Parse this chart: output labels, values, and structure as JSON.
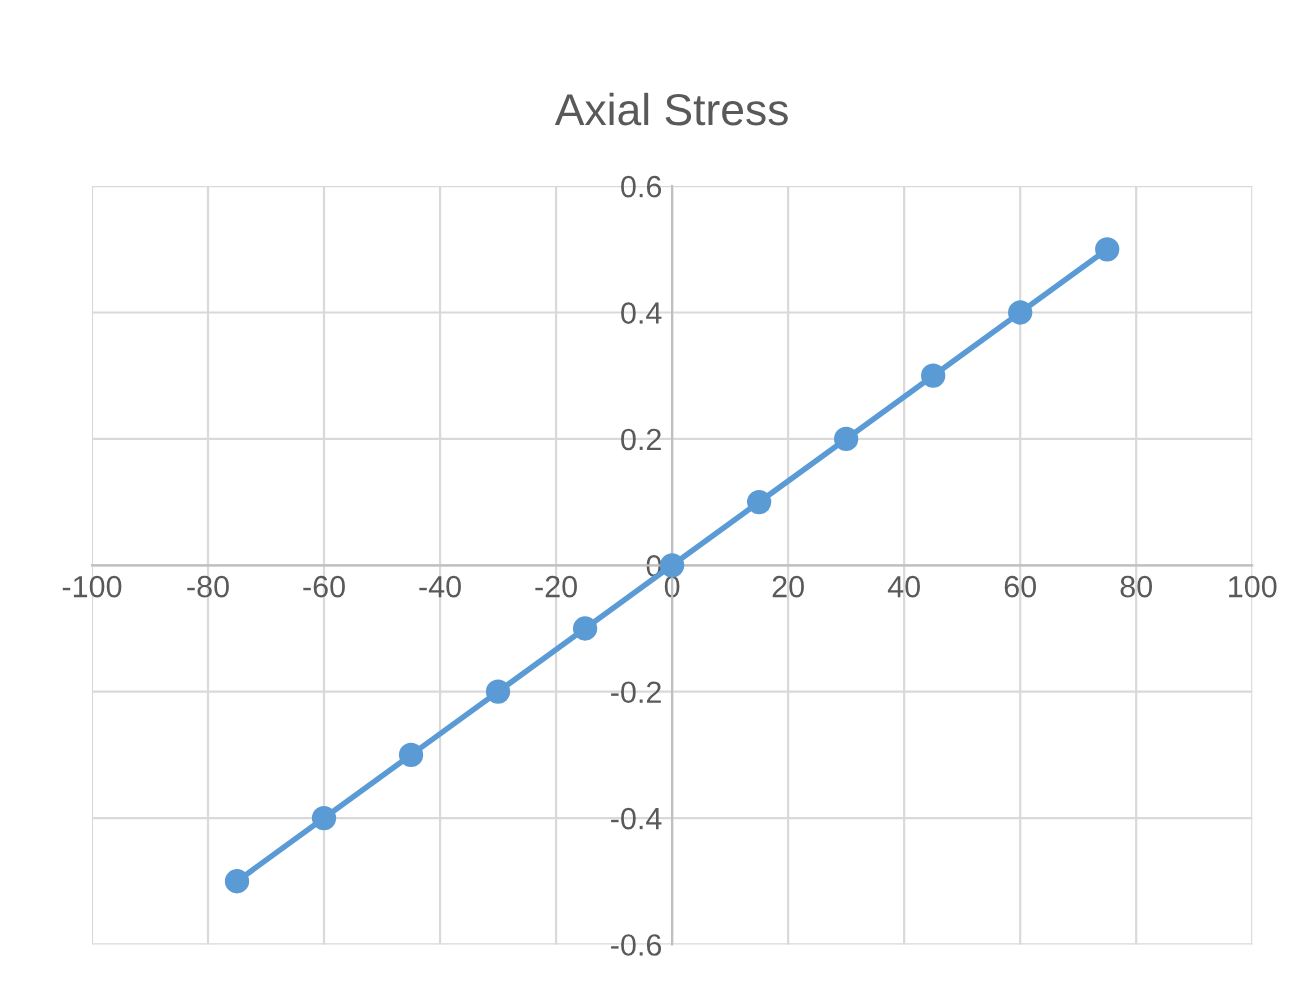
{
  "chart_data": {
    "type": "line",
    "title": "Axial Stress",
    "x": [
      -75,
      -60,
      -45,
      -30,
      -15,
      0,
      15,
      30,
      45,
      60,
      75
    ],
    "series": [
      {
        "color": "#5b9bd5",
        "values": [
          -0.5,
          -0.4,
          -0.3,
          -0.2,
          -0.1,
          0,
          0.1,
          0.2,
          0.3,
          0.4,
          0.5
        ]
      }
    ],
    "xlim": [
      -100,
      100
    ],
    "xticks": [
      -100,
      -80,
      -60,
      -40,
      -20,
      0,
      20,
      40,
      60,
      80,
      100
    ],
    "ylim": [
      -0.6,
      0.6
    ],
    "yticks": [
      -0.6,
      -0.4,
      -0.2,
      0,
      0.2,
      0.4,
      0.6
    ],
    "grid": true,
    "marker": "circle",
    "line_style": "solid"
  }
}
